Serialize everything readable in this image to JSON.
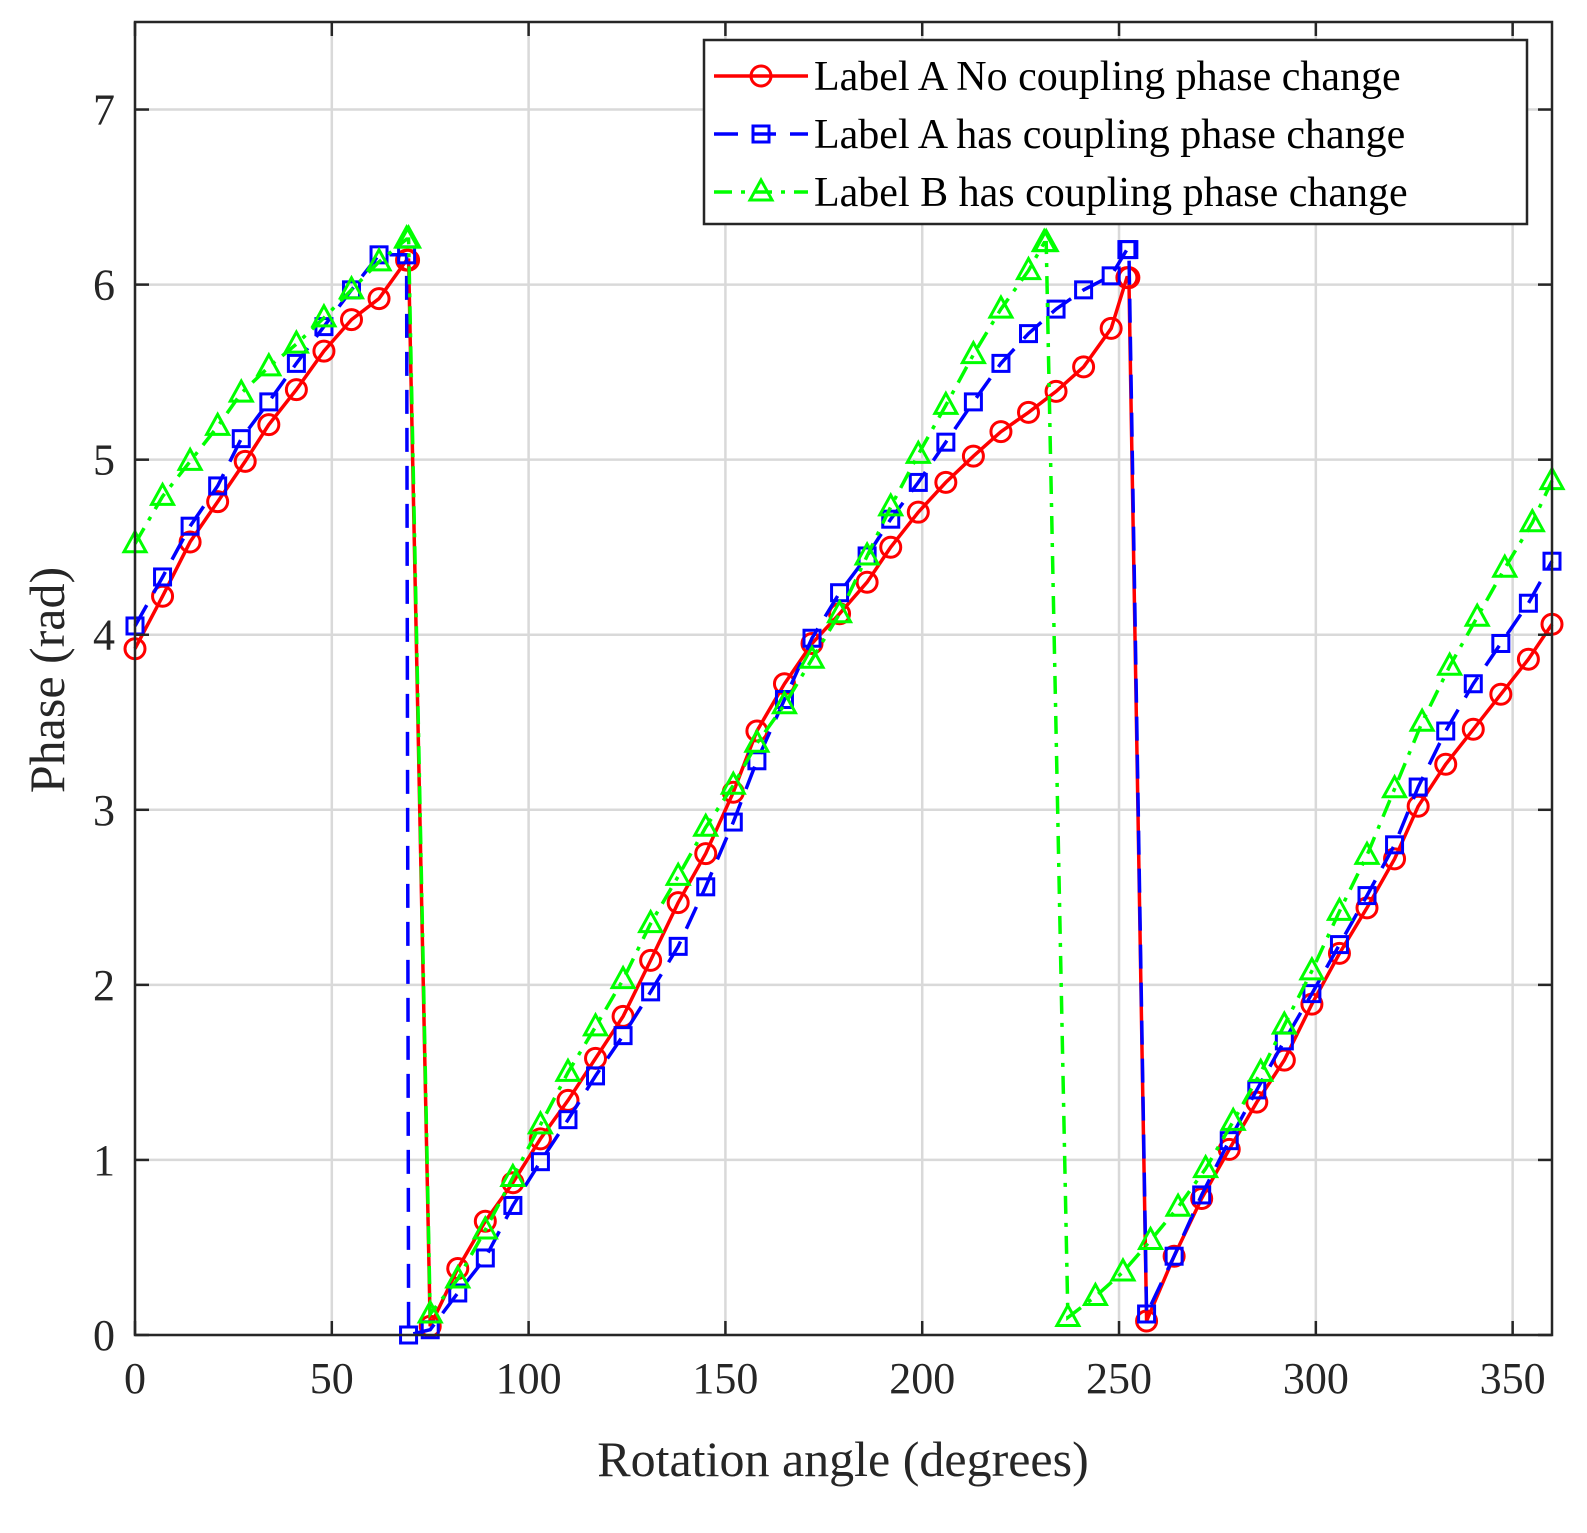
{
  "chart_data": {
    "type": "line",
    "title": "",
    "xlabel": "Rotation angle (degrees)",
    "ylabel": "Phase (rad)",
    "xlim": [
      0,
      360
    ],
    "ylim": [
      0,
      7.5
    ],
    "xticks": [
      0,
      50,
      100,
      150,
      200,
      250,
      300,
      350
    ],
    "yticks": [
      0,
      1,
      2,
      3,
      4,
      5,
      6,
      7
    ],
    "grid": true,
    "legend_position": "top-right",
    "series": [
      {
        "name": "Label A No coupling phase change",
        "color": "#ff0000",
        "line_style": "solid",
        "marker": "circle",
        "x": [
          0,
          7,
          14,
          21,
          28,
          34,
          41,
          48,
          55,
          62,
          69,
          69.5,
          75,
          82,
          89,
          96,
          103,
          110,
          117,
          124,
          131,
          138,
          145,
          152,
          158,
          165,
          172,
          179,
          186,
          192,
          199,
          206,
          213,
          220,
          227,
          234,
          241,
          248,
          252,
          252.5,
          257,
          264,
          271,
          278,
          285,
          292,
          299,
          306,
          313,
          320,
          326,
          333,
          340,
          347,
          354,
          360
        ],
        "y": [
          3.92,
          4.22,
          4.53,
          4.76,
          4.99,
          5.2,
          5.4,
          5.62,
          5.8,
          5.92,
          6.14,
          6.14,
          0.05,
          0.38,
          0.65,
          0.87,
          1.12,
          1.34,
          1.58,
          1.82,
          2.14,
          2.47,
          2.75,
          3.1,
          3.45,
          3.72,
          3.95,
          4.12,
          4.3,
          4.5,
          4.7,
          4.87,
          5.02,
          5.16,
          5.27,
          5.39,
          5.53,
          5.75,
          6.04,
          6.04,
          0.08,
          0.45,
          0.78,
          1.06,
          1.33,
          1.57,
          1.89,
          2.18,
          2.44,
          2.72,
          3.02,
          3.26,
          3.46,
          3.66,
          3.86,
          4.06
        ]
      },
      {
        "name": "Label A has coupling phase change",
        "color": "#0000ff",
        "line_style": "dashed",
        "marker": "square",
        "x": [
          0,
          7,
          14,
          21,
          27,
          34,
          41,
          48,
          55,
          62,
          69,
          69.5,
          75,
          82,
          89,
          96,
          103,
          110,
          117,
          124,
          131,
          138,
          145,
          152,
          158,
          165,
          172,
          179,
          186,
          192,
          199,
          206,
          213,
          220,
          227,
          234,
          241,
          248,
          252,
          252.5,
          257,
          264,
          271,
          278,
          285,
          292,
          299,
          306,
          313,
          320,
          326,
          333,
          340,
          347,
          354,
          360
        ],
        "y": [
          4.05,
          4.33,
          4.62,
          4.85,
          5.12,
          5.33,
          5.55,
          5.76,
          5.97,
          6.17,
          6.17,
          0.0,
          0.03,
          0.24,
          0.44,
          0.74,
          0.99,
          1.23,
          1.48,
          1.71,
          1.96,
          2.22,
          2.56,
          2.93,
          3.28,
          3.63,
          3.98,
          4.24,
          4.45,
          4.66,
          4.87,
          5.1,
          5.33,
          5.55,
          5.72,
          5.86,
          5.97,
          6.05,
          6.2,
          6.2,
          0.12,
          0.45,
          0.8,
          1.11,
          1.4,
          1.68,
          1.95,
          2.23,
          2.51,
          2.8,
          3.13,
          3.45,
          3.72,
          3.95,
          4.18,
          4.42
        ]
      },
      {
        "name": "Label B has coupling phase change",
        "color": "#00ff00",
        "line_style": "dashdot",
        "marker": "triangle",
        "x": [
          0,
          7,
          14,
          21,
          27,
          34,
          41,
          48,
          55,
          62,
          69,
          69.5,
          75,
          82,
          89,
          96,
          103,
          110,
          117,
          124,
          131,
          138,
          145,
          152,
          158,
          165,
          172,
          179,
          186,
          192,
          199,
          206,
          213,
          220,
          227,
          231,
          231.5,
          237,
          244,
          251,
          258,
          265,
          272,
          279,
          286,
          292,
          299,
          306,
          313,
          320,
          327,
          334,
          341,
          348,
          355,
          360
        ],
        "y": [
          4.52,
          4.79,
          4.99,
          5.19,
          5.38,
          5.53,
          5.66,
          5.81,
          5.97,
          6.13,
          6.26,
          6.26,
          0.12,
          0.32,
          0.6,
          0.9,
          1.2,
          1.5,
          1.76,
          2.03,
          2.35,
          2.62,
          2.9,
          3.14,
          3.38,
          3.6,
          3.86,
          4.12,
          4.45,
          4.73,
          5.03,
          5.31,
          5.6,
          5.86,
          6.08,
          6.24,
          6.24,
          0.1,
          0.22,
          0.36,
          0.54,
          0.73,
          0.95,
          1.22,
          1.5,
          1.77,
          2.08,
          2.42,
          2.74,
          3.12,
          3.5,
          3.82,
          4.1,
          4.38,
          4.64,
          4.88
        ]
      }
    ]
  }
}
